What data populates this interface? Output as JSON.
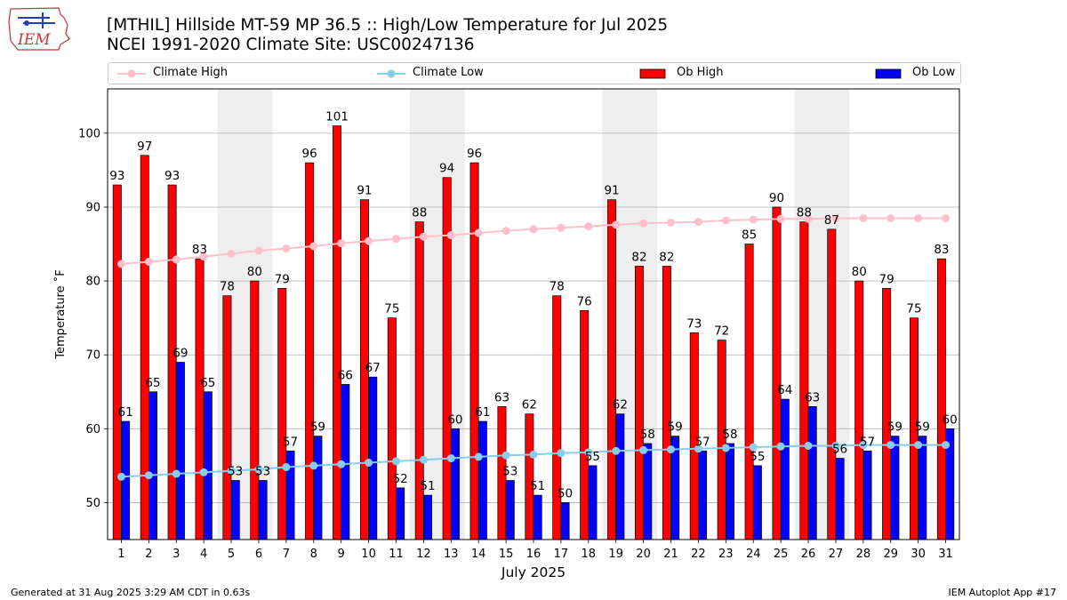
{
  "header": {
    "title": "[MTHIL] Hillside MT-59 MP 36.5  :: High/Low Temperature for Jul 2025",
    "subtitle": "NCEI 1991-2020 Climate Site: USC00247136",
    "logo_text": "IEM"
  },
  "footer": {
    "generated": "Generated at 31 Aug 2025 3:29 AM CDT in 0.63s",
    "app": "IEM Autoplot App #17"
  },
  "chart_data": {
    "type": "bar",
    "title": "[MTHIL] Hillside MT-59 MP 36.5  :: High/Low Temperature for Jul 2025",
    "xlabel": "July 2025",
    "ylabel": "Temperature ˚F",
    "ylim": [
      45,
      106
    ],
    "yticks": [
      50,
      60,
      70,
      80,
      90,
      100
    ],
    "grid": true,
    "legend_position": "top",
    "categories": [
      "1",
      "2",
      "3",
      "4",
      "5",
      "6",
      "7",
      "8",
      "9",
      "10",
      "11",
      "12",
      "13",
      "14",
      "15",
      "16",
      "17",
      "18",
      "19",
      "20",
      "21",
      "22",
      "23",
      "24",
      "25",
      "26",
      "27",
      "28",
      "29",
      "30",
      "31"
    ],
    "weekend_shading": [
      [
        5,
        6
      ],
      [
        12,
        13
      ],
      [
        19,
        20
      ],
      [
        26,
        27
      ]
    ],
    "series": [
      {
        "name": "Climate High",
        "type": "line",
        "color": "#ffc0cb",
        "values": [
          82.3,
          82.6,
          82.9,
          83.3,
          83.7,
          84.1,
          84.4,
          84.7,
          85.1,
          85.4,
          85.7,
          86.0,
          86.2,
          86.5,
          86.8,
          87.0,
          87.2,
          87.4,
          87.6,
          87.8,
          87.9,
          88.0,
          88.2,
          88.3,
          88.4,
          88.4,
          88.5,
          88.5,
          88.5,
          88.5,
          88.5
        ]
      },
      {
        "name": "Climate Low",
        "type": "line",
        "color": "#87ceeb",
        "values": [
          53.5,
          53.7,
          53.9,
          54.1,
          54.3,
          54.5,
          54.8,
          55.0,
          55.2,
          55.4,
          55.6,
          55.8,
          56.0,
          56.2,
          56.4,
          56.5,
          56.7,
          56.8,
          57.0,
          57.1,
          57.2,
          57.3,
          57.4,
          57.5,
          57.6,
          57.7,
          57.7,
          57.8,
          57.8,
          57.8,
          57.8
        ]
      },
      {
        "name": "Ob High",
        "type": "bar",
        "color": "#ff0000",
        "values": [
          93,
          97,
          93,
          83,
          78,
          80,
          79,
          96,
          101,
          91,
          75,
          88,
          94,
          96,
          63,
          62,
          78,
          76,
          91,
          82,
          82,
          73,
          72,
          85,
          90,
          88,
          87,
          80,
          79,
          75,
          83
        ]
      },
      {
        "name": "Ob Low",
        "type": "bar",
        "color": "#0000ff",
        "values": [
          61,
          65,
          69,
          65,
          53,
          53,
          57,
          59,
          66,
          67,
          52,
          51,
          60,
          61,
          53,
          51,
          50,
          55,
          62,
          58,
          59,
          57,
          58,
          55,
          64,
          63,
          56,
          57,
          59,
          59,
          60
        ]
      }
    ]
  }
}
